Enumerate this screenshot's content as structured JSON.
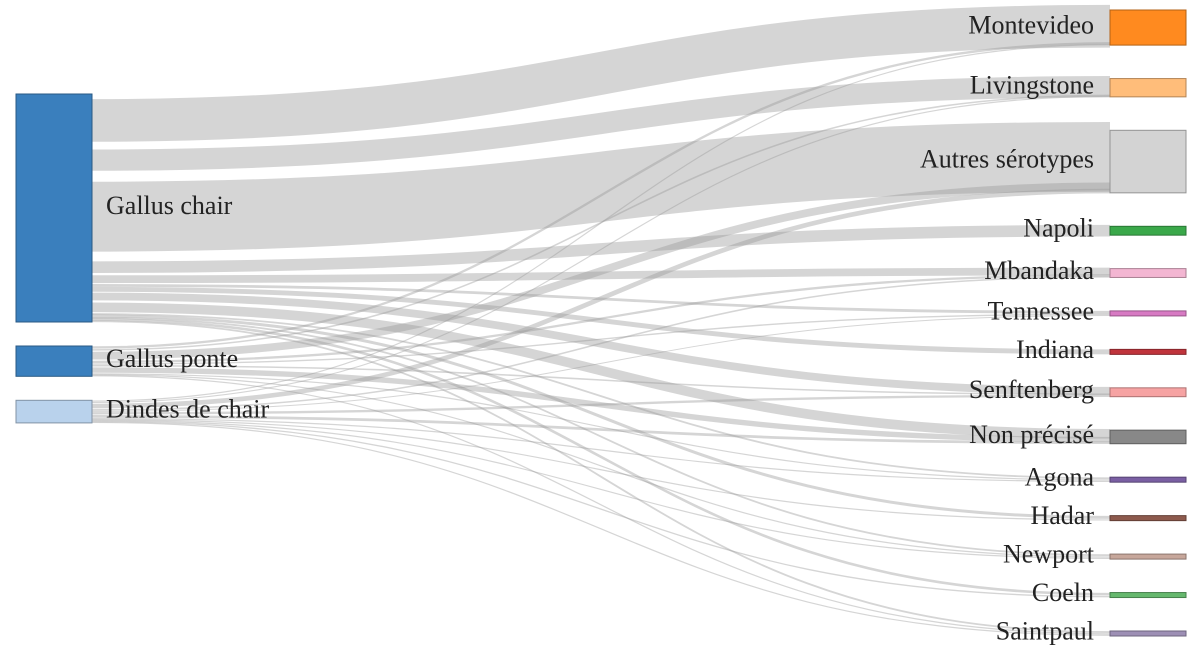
{
  "chart_data": {
    "type": "sankey",
    "sources": [
      {
        "name": "Gallus chair",
        "color": "#3a7fbd"
      },
      {
        "name": "Gallus ponte",
        "color": "#3a7fbd"
      },
      {
        "name": "Dindes de chair",
        "color": "#b9d2ec"
      }
    ],
    "targets": [
      {
        "name": "Montevideo",
        "color": "#ff8a1f"
      },
      {
        "name": "Livingstone",
        "color": "#ffbd7a"
      },
      {
        "name": "Autres sérotypes",
        "color": "#d3d3d3"
      },
      {
        "name": "Napoli",
        "color": "#3aa84a"
      },
      {
        "name": "Mbandaka",
        "color": "#f3b6d2"
      },
      {
        "name": "Tennessee",
        "color": "#d77ac3"
      },
      {
        "name": "Indiana",
        "color": "#c0343c"
      },
      {
        "name": "Senftenberg",
        "color": "#f6a3a3"
      },
      {
        "name": "Non précisé",
        "color": "#888888"
      },
      {
        "name": "Agona",
        "color": "#7a5fa3"
      },
      {
        "name": "Hadar",
        "color": "#8d5a4d"
      },
      {
        "name": "Newport",
        "color": "#c7a79b"
      },
      {
        "name": "Coeln",
        "color": "#66b86e"
      },
      {
        "name": "Saintpaul",
        "color": "#9d8fb5"
      }
    ],
    "links": [
      [
        "Gallus chair",
        "Montevideo",
        11
      ],
      [
        "Gallus chair",
        "Livingstone",
        5.5
      ],
      [
        "Gallus chair",
        "Autres sérotypes",
        18
      ],
      [
        "Gallus chair",
        "Napoli",
        3
      ],
      [
        "Gallus chair",
        "Mbandaka",
        2
      ],
      [
        "Gallus chair",
        "Tennessee",
        0.6
      ],
      [
        "Gallus chair",
        "Indiana",
        1
      ],
      [
        "Gallus chair",
        "Senftenberg",
        2
      ],
      [
        "Gallus chair",
        "Non précisé",
        2.5
      ],
      [
        "Gallus chair",
        "Agona",
        0.3
      ],
      [
        "Gallus chair",
        "Hadar",
        0.5
      ],
      [
        "Gallus chair",
        "Newport",
        0.3
      ],
      [
        "Gallus chair",
        "Coeln",
        0.4
      ],
      [
        "Gallus chair",
        "Saintpaul",
        0.3
      ],
      [
        "Gallus ponte",
        "Montevideo",
        0.6
      ],
      [
        "Gallus ponte",
        "Livingstone",
        0.4
      ],
      [
        "Gallus ponte",
        "Autres sérotypes",
        2
      ],
      [
        "Gallus ponte",
        "Mbandaka",
        0.6
      ],
      [
        "Gallus ponte",
        "Tennessee",
        0.3
      ],
      [
        "Gallus ponte",
        "Senftenberg",
        0.4
      ],
      [
        "Gallus ponte",
        "Non précisé",
        1.4
      ],
      [
        "Gallus ponte",
        "Agona",
        0.2
      ],
      [
        "Gallus ponte",
        "Newport",
        0.2
      ],
      [
        "Gallus ponte",
        "Saintpaul",
        0.2
      ],
      [
        "Dindes de chair",
        "Montevideo",
        0.3
      ],
      [
        "Dindes de chair",
        "Livingstone",
        0.3
      ],
      [
        "Dindes de chair",
        "Autres sérotypes",
        1.2
      ],
      [
        "Dindes de chair",
        "Mbandaka",
        0.4
      ],
      [
        "Dindes de chair",
        "Tennessee",
        0.2
      ],
      [
        "Dindes de chair",
        "Senftenberg",
        0.6
      ],
      [
        "Dindes de chair",
        "Non précisé",
        0.7
      ],
      [
        "Dindes de chair",
        "Agona",
        0.2
      ],
      [
        "Dindes de chair",
        "Hadar",
        0.2
      ],
      [
        "Dindes de chair",
        "Newport",
        0.2
      ],
      [
        "Dindes de chair",
        "Coeln",
        0.2
      ],
      [
        "Dindes de chair",
        "Saintpaul",
        0.2
      ]
    ]
  }
}
